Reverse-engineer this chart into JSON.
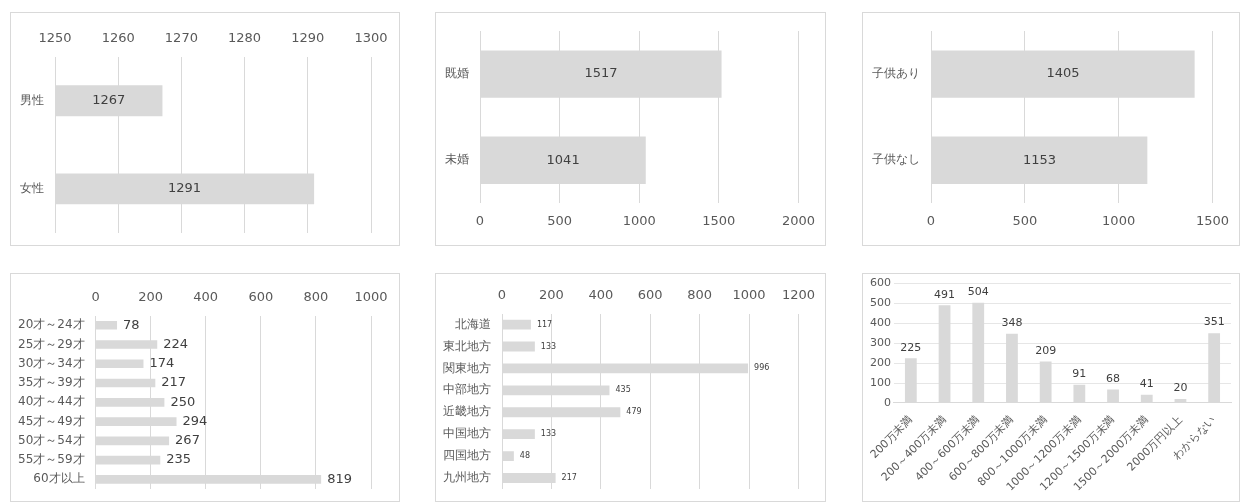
{
  "chart_data": [
    {
      "type": "bar",
      "orientation": "horizontal",
      "categories": [
        "男性",
        "女性"
      ],
      "values": [
        1267,
        1291
      ],
      "color": "#d9d9d9",
      "xlim": [
        1250,
        1300
      ],
      "xticks": [
        1250,
        1260,
        1270,
        1280,
        1290,
        1300
      ],
      "grid": "x",
      "data_labels": true
    },
    {
      "type": "bar",
      "orientation": "horizontal",
      "categories": [
        "既婚",
        "未婚"
      ],
      "values": [
        1517,
        1041
      ],
      "color": "#d9d9d9",
      "xlim": [
        0,
        2000
      ],
      "xticks": [
        0,
        500,
        1000,
        1500,
        2000
      ],
      "grid": "x",
      "data_labels": true
    },
    {
      "type": "bar",
      "orientation": "horizontal",
      "categories": [
        "子供あり",
        "子供なし"
      ],
      "values": [
        1405,
        1153
      ],
      "color": "#d9d9d9",
      "xlim": [
        0,
        1500
      ],
      "xticks": [
        0,
        500,
        1000,
        1500
      ],
      "grid": "x",
      "data_labels": true
    },
    {
      "type": "bar",
      "orientation": "horizontal",
      "categories": [
        "20才～24才",
        "25才～29才",
        "30才～34才",
        "35才～39才",
        "40才～44才",
        "45才～49才",
        "50才～54才",
        "55才～59才",
        "60才以上"
      ],
      "values": [
        78,
        224,
        174,
        217,
        250,
        294,
        267,
        235,
        819
      ],
      "color": "#d9d9d9",
      "xlim": [
        0,
        1000
      ],
      "xticks": [
        0,
        200,
        400,
        600,
        800,
        1000
      ],
      "grid": "x",
      "data_labels": true
    },
    {
      "type": "bar",
      "orientation": "horizontal",
      "categories": [
        "北海道",
        "東北地方",
        "関東地方",
        "中部地方",
        "近畿地方",
        "中国地方",
        "四国地方",
        "九州地方"
      ],
      "values": [
        117,
        133,
        996,
        435,
        479,
        133,
        48,
        217
      ],
      "color": "#d9d9d9",
      "xlim": [
        0,
        1200
      ],
      "xticks": [
        0,
        200,
        400,
        600,
        800,
        1000,
        1200
      ],
      "grid": "x",
      "data_labels": true
    },
    {
      "type": "bar",
      "categories": [
        "200万未満",
        "200～400万未満",
        "400～600万未満",
        "600～800万未満",
        "800～1000万未満",
        "1000～1200万未満",
        "1200～1500万未満",
        "1500～2000万未満",
        "2000万円以上",
        "わからない"
      ],
      "values": [
        225,
        491,
        504,
        348,
        209,
        91,
        68,
        41,
        20,
        351
      ],
      "color": "#d9d9d9",
      "ylim": [
        0,
        600
      ],
      "yticks": [
        0,
        100,
        200,
        300,
        400,
        500,
        600
      ],
      "grid": "y",
      "data_labels": true
    }
  ]
}
